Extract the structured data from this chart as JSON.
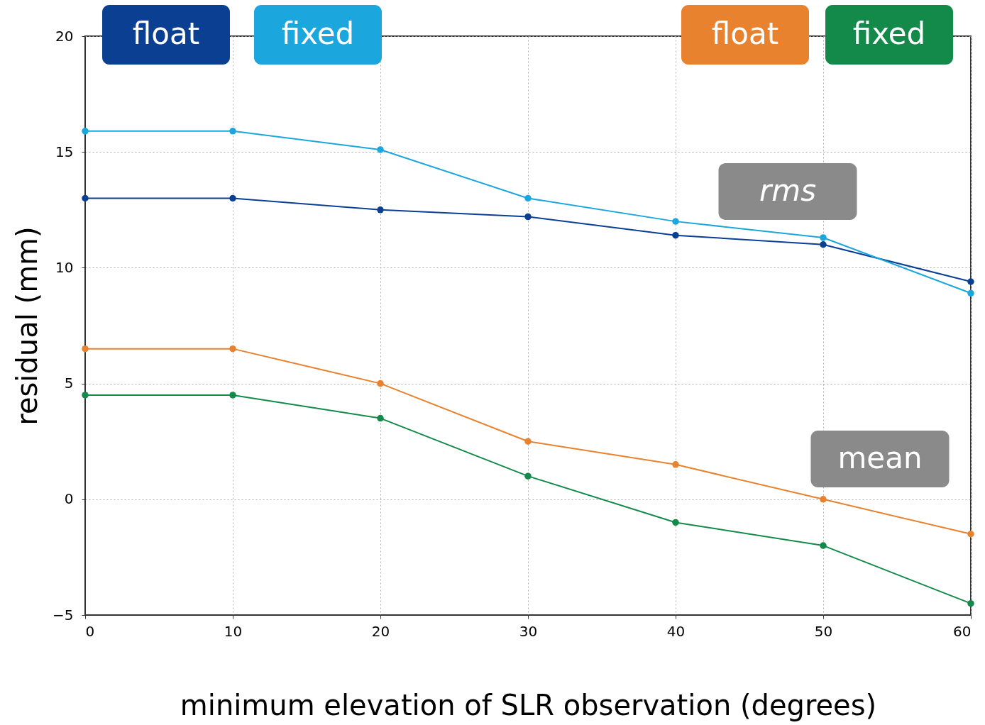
{
  "chart_data": {
    "type": "line",
    "xlabel": "minimum elevation of SLR observation (degrees)",
    "ylabel": "residual (mm)",
    "x": [
      0,
      10,
      20,
      30,
      40,
      50,
      60
    ],
    "series": [
      {
        "name": "float",
        "color": "#0b3f91",
        "values": [
          13.0,
          13.0,
          12.5,
          12.2,
          11.4,
          11.0,
          9.4
        ]
      },
      {
        "name": "fixed",
        "color": "#1ba6dd",
        "values": [
          15.9,
          15.9,
          15.1,
          13.0,
          12.0,
          11.3,
          8.9
        ]
      },
      {
        "name": "float",
        "color": "#e8822e",
        "values": [
          6.5,
          6.5,
          5.0,
          2.5,
          1.5,
          0.0,
          -1.5
        ]
      },
      {
        "name": "fixed",
        "color": "#138a4a",
        "values": [
          4.5,
          4.5,
          3.5,
          1.0,
          -1.0,
          -2.0,
          -4.5
        ]
      }
    ],
    "xlim": [
      0,
      60
    ],
    "xticks": [
      0,
      10,
      20,
      30,
      40,
      50,
      60
    ],
    "ylim": [
      -5,
      20
    ],
    "yticks": [
      -5,
      0,
      5,
      10,
      15,
      20
    ],
    "annotations": [
      "rms",
      "mean"
    ],
    "grid": true,
    "legend": "top",
    "marker": "circle",
    "line_style": "solid"
  }
}
